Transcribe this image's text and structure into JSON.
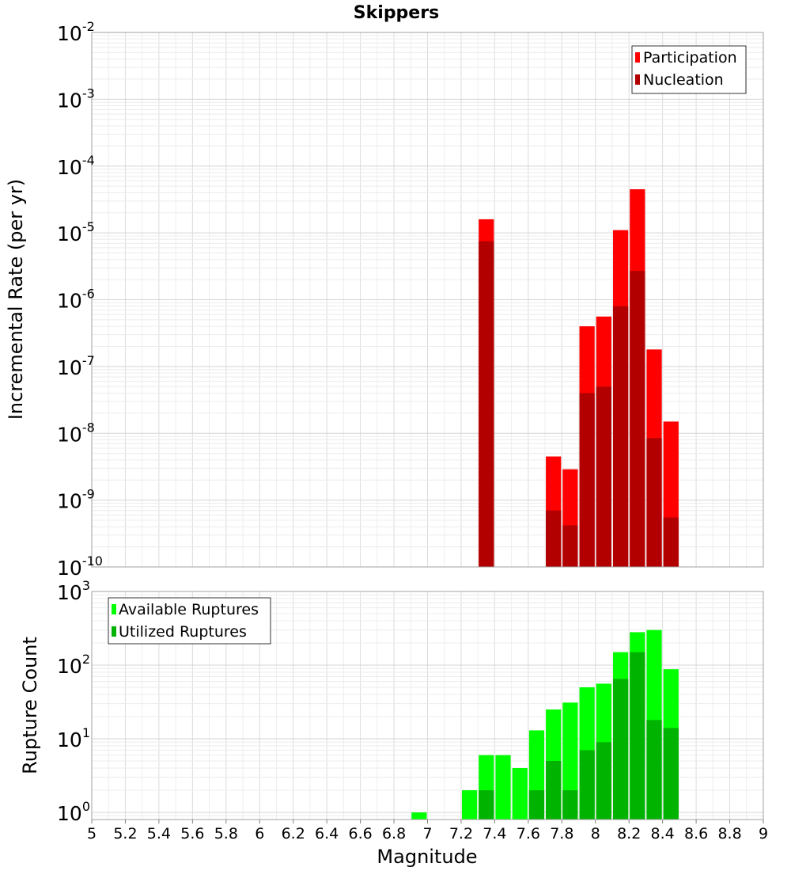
{
  "chart_data": [
    {
      "type": "bar",
      "title": "Skippers",
      "xlabel": "Magnitude",
      "ylabel": "Incremental Rate (per yr)",
      "yscale": "log",
      "ylim": [
        1e-10,
        0.01
      ],
      "xlim": [
        5,
        9
      ],
      "bar_width": 0.1,
      "grid": true,
      "legend_position": "top-right",
      "y_decade_labels": [
        "10",
        "10",
        "10",
        "10",
        "10",
        "10",
        "10",
        "10",
        "10"
      ],
      "y_decade_exponents": [
        "-10",
        "-9",
        "-8",
        "-7",
        "-6",
        "-5",
        "-4",
        "-3",
        "-2"
      ],
      "series": [
        {
          "name": "Participation",
          "color": "#ff0000",
          "x": [
            7.35,
            7.75,
            7.85,
            7.95,
            8.05,
            8.15,
            8.25,
            8.35,
            8.45
          ],
          "values": [
            1.6e-05,
            4.5e-09,
            2.9e-09,
            4e-07,
            5.6e-07,
            1.1e-05,
            4.5e-05,
            1.8e-07,
            1.5e-08
          ]
        },
        {
          "name": "Nucleation",
          "color": "#b20000",
          "x": [
            7.35,
            7.75,
            7.85,
            7.95,
            8.05,
            8.15,
            8.25,
            8.35,
            8.45
          ],
          "values": [
            7.5e-06,
            7e-10,
            4.2e-10,
            4e-08,
            5e-08,
            8e-07,
            2.7e-06,
            8.5e-09,
            5.5e-10
          ]
        }
      ]
    },
    {
      "type": "bar",
      "xlabel": "Magnitude",
      "ylabel": "Rupture Count",
      "yscale": "log",
      "ylim": [
        0.8,
        1000
      ],
      "xlim": [
        5,
        9
      ],
      "bar_width": 0.1,
      "grid": true,
      "legend_position": "top-left",
      "x_ticks": [
        "5",
        "5.2",
        "5.4",
        "5.6",
        "5.8",
        "6",
        "6.2",
        "6.4",
        "6.6",
        "6.8",
        "7",
        "7.2",
        "7.4",
        "7.6",
        "7.8",
        "8",
        "8.2",
        "8.4",
        "8.6",
        "8.8",
        "9"
      ],
      "y_decade_labels": [
        "10",
        "10",
        "10",
        "10"
      ],
      "y_decade_exponents": [
        "0",
        "1",
        "2",
        "3"
      ],
      "series": [
        {
          "name": "Available Ruptures",
          "color": "#00ff00",
          "x": [
            6.95,
            7.25,
            7.35,
            7.45,
            7.55,
            7.65,
            7.75,
            7.85,
            7.95,
            8.05,
            8.15,
            8.25,
            8.35,
            8.45
          ],
          "values": [
            1,
            2,
            6,
            6,
            4,
            13,
            25,
            31,
            50,
            56,
            150,
            280,
            300,
            88
          ]
        },
        {
          "name": "Utilized Ruptures",
          "color": "#00b300",
          "x": [
            7.35,
            7.65,
            7.75,
            7.85,
            7.95,
            8.05,
            8.15,
            8.25,
            8.35,
            8.45
          ],
          "values": [
            2,
            2,
            5,
            2,
            7,
            9,
            65,
            150,
            18,
            14
          ]
        }
      ]
    }
  ]
}
